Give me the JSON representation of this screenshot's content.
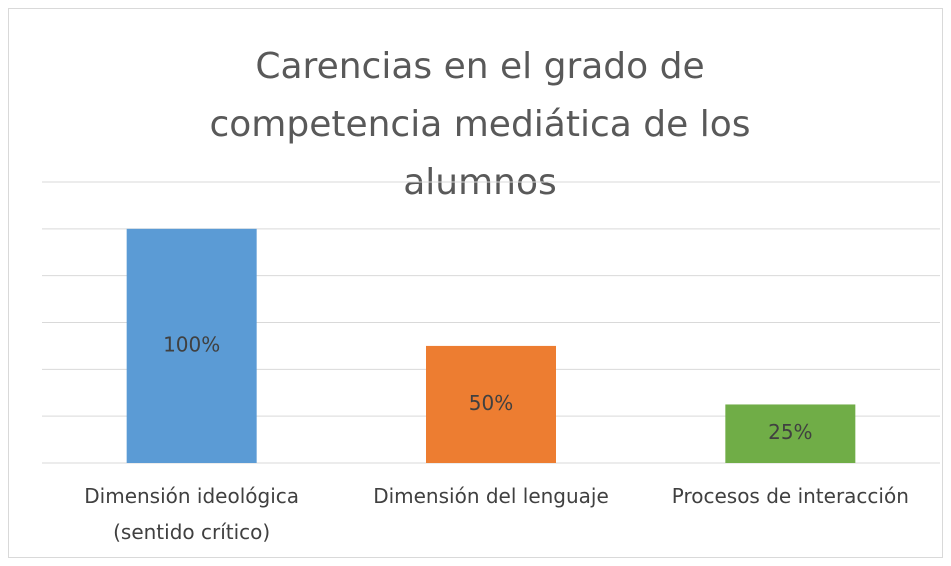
{
  "chart_data": {
    "type": "bar",
    "title": "Carencias en el grado de competencia mediática de los alumnos",
    "categories": [
      "Dimensión ideológica (sentido crítico)",
      "Dimensión del lenguaje",
      "Procesos de interacción"
    ],
    "values": [
      100,
      50,
      25
    ],
    "value_labels": [
      "100%",
      "50%",
      "25%"
    ],
    "colors": [
      "#5b9bd5",
      "#ed7d31",
      "#70ad47"
    ],
    "ylim": [
      0,
      120
    ],
    "yticks": [
      0,
      20,
      40,
      60,
      80,
      100,
      120
    ],
    "grid": true
  }
}
